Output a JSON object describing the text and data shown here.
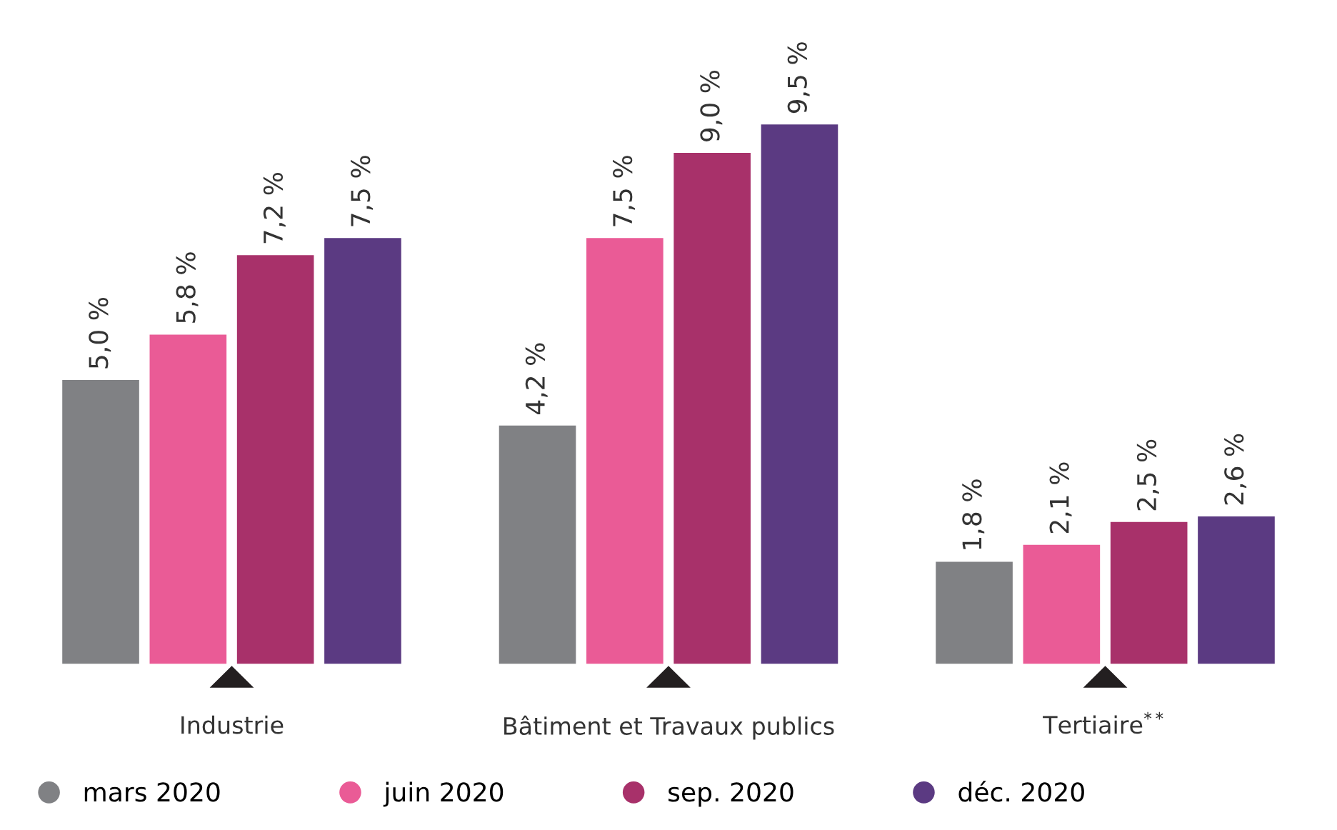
{
  "chart_data": {
    "type": "bar",
    "categories": [
      "Industrie",
      "Bâtiment et Travaux publics",
      "Tertiaire$^{**}$"
    ],
    "series": [
      {
        "name": "mars 2020",
        "color": "#808184",
        "values": [
          5.0,
          4.2,
          1.8
        ],
        "value_labels": [
          "5,0 %",
          "4,2 %",
          "1,8 %"
        ]
      },
      {
        "name": "juin 2020",
        "color": "#ea5b96",
        "values": [
          5.8,
          7.5,
          2.1
        ],
        "value_labels": [
          "5,8 %",
          "7,5 %",
          "2,1 %"
        ]
      },
      {
        "name": "sep. 2020",
        "color": "#a8316a",
        "values": [
          7.2,
          9.0,
          2.5
        ],
        "value_labels": [
          "7,2 %",
          "9,0 %",
          "2,5 %"
        ]
      },
      {
        "name": "déc. 2020",
        "color": "#5b3a82",
        "values": [
          7.5,
          9.5,
          2.6
        ],
        "value_labels": [
          "7,5 %",
          "9,5 %",
          "2,6 %"
        ]
      }
    ],
    "legend": "bottom",
    "grid": false,
    "tick_labels": "x"
  }
}
